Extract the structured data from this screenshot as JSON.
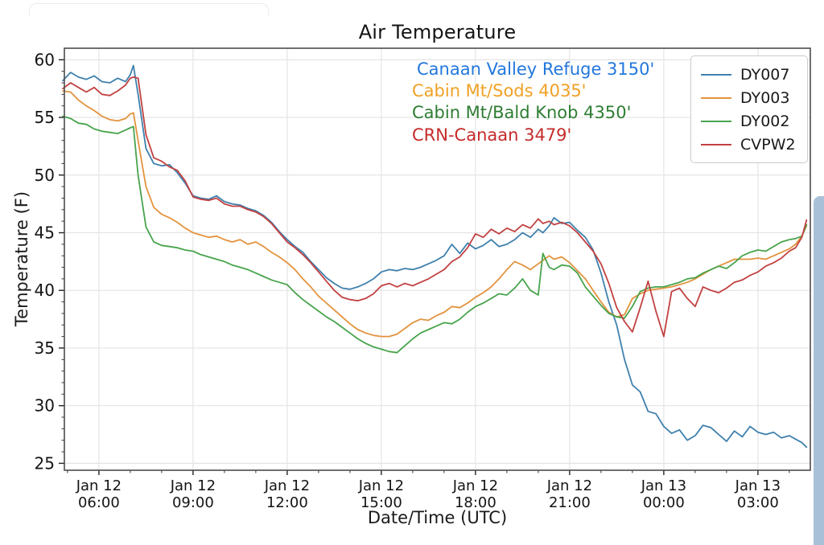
{
  "page": {
    "background": "#ffffff",
    "scrollbar_color": "#a9c1d8"
  },
  "chart_data": {
    "type": "line",
    "title": "Air Temperature",
    "xlabel": "Date/Time (UTC)",
    "ylabel": "Temperature (F)",
    "grid": true,
    "legend_position": "upper right",
    "x_unit": "hours_utc_since_jan12_0000",
    "xlim": [
      4.9,
      28.67
    ],
    "ylim": [
      24.4,
      61.0
    ],
    "yticks": [
      25,
      30,
      35,
      40,
      45,
      50,
      55,
      60
    ],
    "xticks": [
      {
        "t": 6,
        "lines": [
          "Jan 12",
          "06:00"
        ]
      },
      {
        "t": 9,
        "lines": [
          "Jan 12",
          "09:00"
        ]
      },
      {
        "t": 12,
        "lines": [
          "Jan 12",
          "12:00"
        ]
      },
      {
        "t": 15,
        "lines": [
          "Jan 12",
          "15:00"
        ]
      },
      {
        "t": 18,
        "lines": [
          "Jan 12",
          "18:00"
        ]
      },
      {
        "t": 21,
        "lines": [
          "Jan 12",
          "21:00"
        ]
      },
      {
        "t": 24,
        "lines": [
          "Jan 13",
          "00:00"
        ]
      },
      {
        "t": 27,
        "lines": [
          "Jan 13",
          "03:00"
        ]
      }
    ],
    "x": [
      4.85,
      5.1,
      5.35,
      5.6,
      5.85,
      6.1,
      6.35,
      6.6,
      6.85,
      7.0,
      7.1,
      7.25,
      7.5,
      7.75,
      8.0,
      8.25,
      8.5,
      8.75,
      9.0,
      9.25,
      9.5,
      9.75,
      10.0,
      10.25,
      10.5,
      10.75,
      11.0,
      11.25,
      11.5,
      11.75,
      12.0,
      12.25,
      12.5,
      12.75,
      13.0,
      13.25,
      13.5,
      13.75,
      14.0,
      14.25,
      14.5,
      14.75,
      15.0,
      15.25,
      15.5,
      15.75,
      16.0,
      16.25,
      16.5,
      16.75,
      17.0,
      17.25,
      17.5,
      17.75,
      18.0,
      18.25,
      18.5,
      18.75,
      19.0,
      19.25,
      19.5,
      19.75,
      20.0,
      20.15,
      20.35,
      20.5,
      20.75,
      21.0,
      21.25,
      21.5,
      21.75,
      22.0,
      22.25,
      22.5,
      22.75,
      23.0,
      23.25,
      23.5,
      23.75,
      24.0,
      24.25,
      24.5,
      24.75,
      25.0,
      25.25,
      25.5,
      25.75,
      26.0,
      26.25,
      26.5,
      26.75,
      27.0,
      27.25,
      27.5,
      27.75,
      28.0,
      28.2,
      28.4,
      28.55
    ],
    "series": [
      {
        "name": "DY007",
        "color": "#3f81ad",
        "values": [
          58.2,
          58.9,
          58.5,
          58.3,
          58.6,
          58.1,
          58.0,
          58.4,
          58.1,
          58.7,
          59.5,
          57.0,
          52.3,
          51.0,
          50.8,
          50.9,
          50.2,
          49.3,
          48.2,
          48.0,
          47.9,
          48.2,
          47.7,
          47.5,
          47.4,
          47.1,
          46.9,
          46.5,
          45.9,
          45.1,
          44.4,
          43.8,
          43.3,
          42.5,
          41.8,
          41.1,
          40.6,
          40.2,
          40.1,
          40.3,
          40.6,
          41.0,
          41.6,
          41.8,
          41.7,
          41.9,
          41.8,
          42.0,
          42.3,
          42.6,
          43.0,
          44.0,
          43.2,
          44.1,
          43.6,
          43.9,
          44.4,
          43.8,
          44.0,
          44.4,
          45.0,
          44.6,
          45.3,
          45.0,
          45.6,
          46.3,
          45.8,
          45.9,
          45.2,
          44.6,
          43.5,
          41.5,
          39.0,
          37.0,
          34.0,
          31.8,
          31.2,
          29.5,
          29.3,
          28.2,
          27.6,
          27.9,
          27.0,
          27.4,
          28.3,
          28.1,
          27.5,
          26.9,
          27.8,
          27.3,
          28.2,
          27.7,
          27.5,
          27.7,
          27.2,
          27.4,
          27.1,
          26.8,
          26.4
        ]
      },
      {
        "name": "DY003",
        "color": "#e3933e",
        "values": [
          57.3,
          57.2,
          56.5,
          56.0,
          55.6,
          55.1,
          54.8,
          54.7,
          54.9,
          55.3,
          55.4,
          53.0,
          49.0,
          47.2,
          46.6,
          46.3,
          45.9,
          45.4,
          45.0,
          44.8,
          44.6,
          44.7,
          44.4,
          44.2,
          44.4,
          44.0,
          44.2,
          43.8,
          43.3,
          42.9,
          42.4,
          41.8,
          41.0,
          40.3,
          39.5,
          38.9,
          38.3,
          37.7,
          37.1,
          36.6,
          36.3,
          36.1,
          36.0,
          36.0,
          36.2,
          36.7,
          37.2,
          37.5,
          37.4,
          37.8,
          38.1,
          38.6,
          38.5,
          38.9,
          39.4,
          39.8,
          40.3,
          41.0,
          41.8,
          42.5,
          42.2,
          41.8,
          42.3,
          42.6,
          43.0,
          42.7,
          42.9,
          42.4,
          41.7,
          41.0,
          40.0,
          39.0,
          38.1,
          37.7,
          37.9,
          39.3,
          39.7,
          40.0,
          40.1,
          40.2,
          40.3,
          40.5,
          40.7,
          41.0,
          41.4,
          41.8,
          42.1,
          42.4,
          42.7,
          42.7,
          42.7,
          42.8,
          42.7,
          43.0,
          43.3,
          43.6,
          44.0,
          44.7,
          45.6
        ]
      },
      {
        "name": "DY002",
        "color": "#48a44c",
        "values": [
          55.1,
          54.9,
          54.5,
          54.4,
          54.0,
          53.8,
          53.7,
          53.6,
          53.9,
          54.1,
          54.2,
          50.0,
          45.5,
          44.2,
          43.9,
          43.8,
          43.7,
          43.5,
          43.4,
          43.1,
          42.9,
          42.7,
          42.5,
          42.2,
          42.0,
          41.8,
          41.5,
          41.2,
          40.9,
          40.7,
          40.5,
          39.8,
          39.2,
          38.7,
          38.2,
          37.7,
          37.3,
          36.8,
          36.3,
          35.8,
          35.4,
          35.1,
          34.9,
          34.7,
          34.6,
          35.2,
          35.8,
          36.3,
          36.6,
          36.9,
          37.2,
          37.1,
          37.5,
          38.1,
          38.6,
          38.9,
          39.3,
          39.7,
          39.6,
          40.2,
          41.0,
          40.0,
          39.6,
          43.2,
          42.0,
          41.8,
          42.2,
          42.1,
          41.5,
          40.3,
          39.5,
          38.7,
          38.0,
          37.7,
          37.6,
          38.6,
          39.9,
          40.2,
          40.3,
          40.3,
          40.5,
          40.7,
          41.0,
          41.1,
          41.5,
          41.8,
          42.1,
          41.9,
          42.4,
          43.0,
          43.3,
          43.5,
          43.4,
          43.8,
          44.2,
          44.4,
          44.5,
          44.7,
          45.7
        ]
      },
      {
        "name": "CVPW2",
        "color": "#c24141",
        "values": [
          57.5,
          58.0,
          57.6,
          57.2,
          57.6,
          57.0,
          56.9,
          57.3,
          57.8,
          58.4,
          58.5,
          58.4,
          53.5,
          51.5,
          51.2,
          50.7,
          50.4,
          49.5,
          48.1,
          47.9,
          47.8,
          48.0,
          47.5,
          47.3,
          47.3,
          47.0,
          46.8,
          46.4,
          45.8,
          45.0,
          44.2,
          43.7,
          43.1,
          42.4,
          41.6,
          40.8,
          40.0,
          39.4,
          39.2,
          39.1,
          39.3,
          39.7,
          40.4,
          40.6,
          40.3,
          40.6,
          40.4,
          40.7,
          41.0,
          41.4,
          41.8,
          42.5,
          42.9,
          43.7,
          44.9,
          44.6,
          45.3,
          44.9,
          45.4,
          45.1,
          45.7,
          45.4,
          46.2,
          45.8,
          46.0,
          45.7,
          45.9,
          45.6,
          45.0,
          44.2,
          43.4,
          42.3,
          40.6,
          38.5,
          37.3,
          36.4,
          38.5,
          40.8,
          38.2,
          36.0,
          39.9,
          40.2,
          39.3,
          38.6,
          40.3,
          40.0,
          39.8,
          40.2,
          40.7,
          40.9,
          41.3,
          41.6,
          42.1,
          42.4,
          42.8,
          43.4,
          43.7,
          44.6,
          46.1
        ]
      }
    ],
    "annotations": [
      {
        "text": "Canaan Valley Refuge 3150'",
        "color": "#2277dd"
      },
      {
        "text": "Cabin Mt/Sods 4035'",
        "color": "#f0a125"
      },
      {
        "text": "Cabin Mt/Bald Knob 4350'",
        "color": "#2e7d32"
      },
      {
        "text": "CRN-Canaan 3479'",
        "color": "#c52b2b"
      }
    ]
  }
}
